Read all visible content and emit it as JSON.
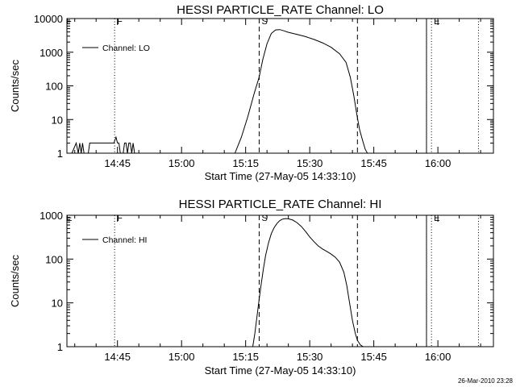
{
  "chart_data": [
    {
      "type": "line",
      "title": "HESSI PARTICLE_RATE Channel: LO",
      "xlabel": "Start Time (27-May-05 14:33:10)",
      "ylabel": "Counts/sec",
      "yscale": "log",
      "ylim": [
        1,
        10000
      ],
      "xlim": [
        "14:33:10",
        "16:13:00"
      ],
      "x_ticks": [
        "14:45",
        "15:00",
        "15:15",
        "15:30",
        "15:45",
        "16:00"
      ],
      "y_ticks": [
        "1",
        "10",
        "100",
        "1000",
        "10000"
      ],
      "legend": {
        "placement": "top-left",
        "entries": [
          "Channel: LO"
        ]
      },
      "markers": [
        {
          "label": "F",
          "time": "14:44:20",
          "style": "dotted"
        },
        {
          "label": "S",
          "time": "15:18:10",
          "style": "dashed"
        },
        {
          "label": "",
          "time": "15:41:10",
          "style": "dashed"
        },
        {
          "label": "",
          "time": "15:57:20",
          "style": "solid"
        },
        {
          "label": "E",
          "time": "15:58:30",
          "style": "dotted"
        },
        {
          "label": "",
          "time": "16:09:30",
          "style": "dotted"
        }
      ],
      "corner_labels": [
        "F"
      ],
      "series": [
        {
          "name": "Channel: LO",
          "x": [
            "14:34:20",
            "14:35:20",
            "14:35:50",
            "14:36:10",
            "14:36:30",
            "14:36:50",
            "14:37:10",
            "14:37:30",
            "14:37:50",
            "14:38:10",
            "14:38:30",
            "14:39:10",
            "14:39:30",
            "14:39:50",
            "14:40:10",
            "14:44:10",
            "14:44:40",
            "14:45:00",
            "14:45:20",
            "14:45:40",
            "14:46:00",
            "14:46:20",
            "14:46:40",
            "14:47:00",
            "14:47:20",
            "14:47:40",
            "14:48:00",
            "14:48:20",
            "14:48:40",
            "14:49:00",
            "15:12:30",
            "15:14:00",
            "15:15:30",
            "15:17:00",
            "15:18:10",
            "15:19:00",
            "15:20:00",
            "15:21:00",
            "15:22:00",
            "15:23:00",
            "15:24:00",
            "15:25:00",
            "15:27:00",
            "15:29:00",
            "15:31:00",
            "15:33:00",
            "15:35:00",
            "15:37:00",
            "15:38:30",
            "15:39:30",
            "15:40:20",
            "15:41:00",
            "15:41:40",
            "15:42:20",
            "15:43:00",
            "15:43:30"
          ],
          "y": [
            1,
            2,
            1,
            2,
            1,
            2,
            1,
            1,
            1,
            1,
            2,
            2,
            2,
            2,
            2,
            2,
            3,
            2,
            2,
            1,
            1,
            1,
            2,
            2,
            1,
            2,
            2,
            1,
            2,
            1,
            1,
            3,
            12,
            60,
            180,
            600,
            1800,
            3600,
            4600,
            4700,
            4300,
            3900,
            3400,
            2900,
            2400,
            1900,
            1400,
            900,
            500,
            180,
            50,
            15,
            5,
            2.5,
            1.3,
            1
          ]
        }
      ]
    },
    {
      "type": "line",
      "title": "HESSI PARTICLE_RATE Channel: HI",
      "xlabel": "Start Time (27-May-05 14:33:10)",
      "ylabel": "Counts/sec",
      "yscale": "log",
      "ylim": [
        1,
        1000
      ],
      "xlim": [
        "14:33:10",
        "16:13:00"
      ],
      "x_ticks": [
        "14:45",
        "15:00",
        "15:15",
        "15:30",
        "15:45",
        "16:00"
      ],
      "y_ticks": [
        "1",
        "10",
        "100",
        "1000"
      ],
      "legend": {
        "placement": "top-left",
        "entries": [
          "Channel: HI"
        ]
      },
      "markers": [
        {
          "label": "F",
          "time": "14:44:20",
          "style": "dotted"
        },
        {
          "label": "S",
          "time": "15:18:10",
          "style": "dashed"
        },
        {
          "label": "",
          "time": "15:41:10",
          "style": "dashed"
        },
        {
          "label": "",
          "time": "15:57:20",
          "style": "solid"
        },
        {
          "label": "E",
          "time": "15:58:30",
          "style": "dotted"
        },
        {
          "label": "",
          "time": "16:09:30",
          "style": "dotted"
        }
      ],
      "corner_labels": [
        "E"
      ],
      "series": [
        {
          "name": "Channel: HI",
          "x": [
            "15:16:40",
            "15:17:10",
            "15:17:40",
            "15:18:10",
            "15:18:40",
            "15:19:10",
            "15:19:40",
            "15:20:20",
            "15:21:00",
            "15:21:40",
            "15:22:20",
            "15:23:00",
            "15:23:40",
            "15:24:20",
            "15:25:00",
            "15:26:00",
            "15:27:00",
            "15:28:00",
            "15:29:00",
            "15:30:00",
            "15:31:00",
            "15:32:00",
            "15:33:00",
            "15:34:00",
            "15:35:00",
            "15:36:00",
            "15:37:00",
            "15:38:00",
            "15:38:40",
            "15:39:20",
            "15:40:00",
            "15:40:40",
            "15:41:10",
            "15:41:50",
            "15:42:30"
          ],
          "y": [
            1,
            2,
            5,
            12,
            28,
            60,
            120,
            230,
            380,
            520,
            650,
            760,
            820,
            840,
            830,
            780,
            680,
            560,
            430,
            320,
            250,
            200,
            170,
            150,
            130,
            110,
            85,
            50,
            25,
            10,
            4,
            2,
            1.4,
            1.1,
            1
          ]
        }
      ]
    }
  ],
  "timestamp": "26-Mar-2010 23:28"
}
